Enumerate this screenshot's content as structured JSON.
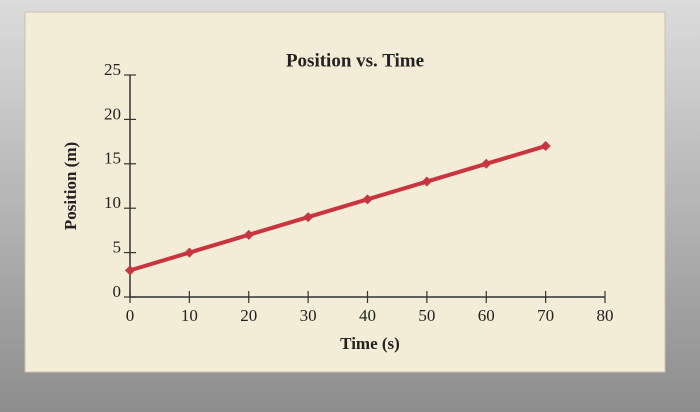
{
  "chart_data": {
    "type": "line",
    "title": "Position vs. Time",
    "x_label": "Time (s)",
    "y_label": "Position (m)",
    "x": [
      0,
      10,
      20,
      30,
      40,
      50,
      60,
      70
    ],
    "values": [
      3,
      5,
      7,
      9,
      11,
      13,
      15,
      17
    ],
    "color": "#c9343e",
    "xlim": [
      0,
      80
    ],
    "xticks": [
      0,
      10,
      20,
      30,
      40,
      50,
      60,
      70,
      80
    ],
    "ylim": [
      0,
      25
    ],
    "yticks": [
      0,
      5,
      10,
      15,
      20,
      25
    ]
  }
}
